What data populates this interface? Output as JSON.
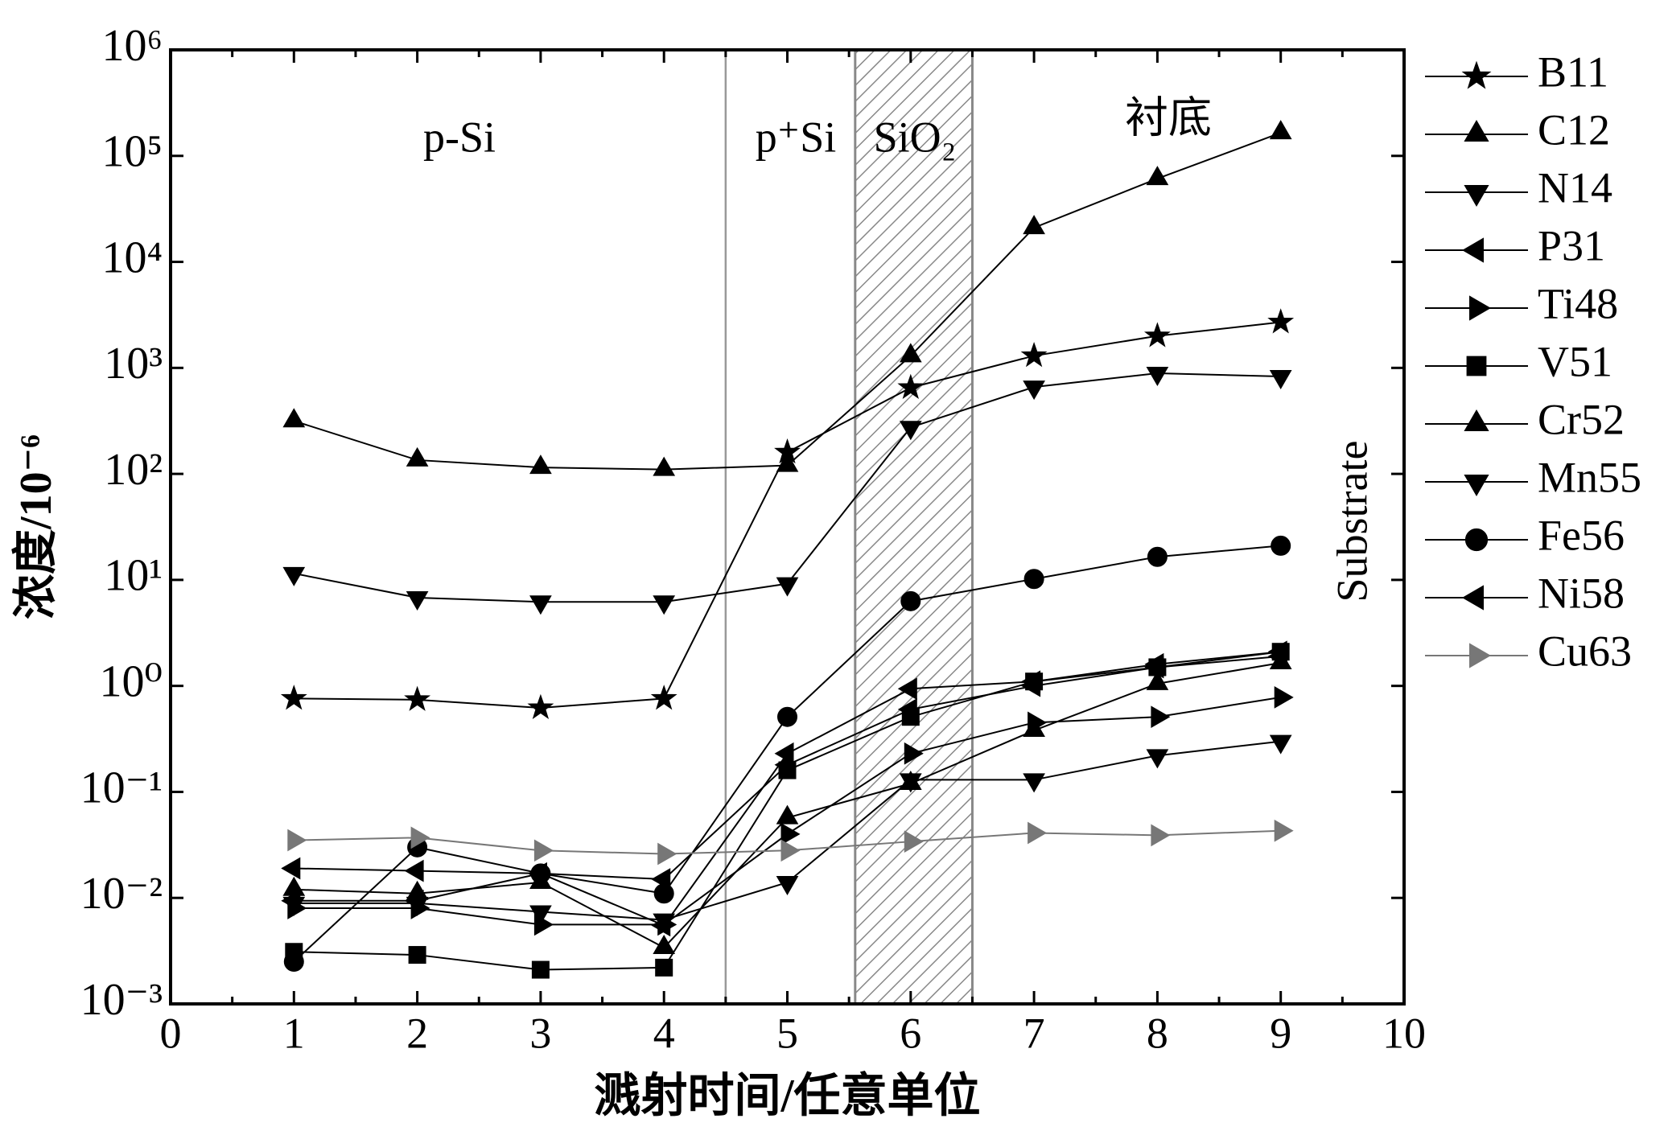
{
  "chart_data": {
    "type": "line",
    "x_label": "溅射时间/任意单位",
    "y_label": "浓度/10⁻⁶",
    "log_y": true,
    "xlim": [
      0,
      10
    ],
    "xticks": [
      0,
      1,
      2,
      3,
      4,
      5,
      6,
      7,
      8,
      9,
      10
    ],
    "ylim": [
      0.001,
      1000000
    ],
    "yticks": [
      {
        "value": 0.001,
        "label": "10⁻³"
      },
      {
        "value": 0.01,
        "label": "10⁻²"
      },
      {
        "value": 0.1,
        "label": "10⁻¹"
      },
      {
        "value": 1,
        "label": "10⁰"
      },
      {
        "value": 10,
        "label": "10¹"
      },
      {
        "value": 100,
        "label": "10²"
      },
      {
        "value": 1000,
        "label": "10³"
      },
      {
        "value": 10000,
        "label": "10⁴"
      },
      {
        "value": 100000,
        "label": "10⁵"
      },
      {
        "value": 1000000,
        "label": "10⁶"
      }
    ],
    "boundary": 4.5,
    "shaded_span": [
      5.55,
      6.5
    ],
    "annotations": [
      "p-Si",
      "p⁺Si",
      "SiO₂",
      "衬底",
      "Substrate"
    ],
    "legend": "right outside",
    "x": [
      1,
      2,
      3,
      4,
      5,
      6,
      7,
      8,
      9
    ],
    "series": [
      {
        "name": "B11",
        "marker": "star",
        "color": "#000000",
        "values": [
          0.76,
          0.74,
          0.62,
          0.76,
          160,
          650,
          1300,
          2000,
          2700
        ]
      },
      {
        "name": "C12",
        "marker": "up",
        "color": "#000000",
        "values": [
          316,
          135,
          115,
          110,
          120,
          1300,
          21000,
          61000,
          165000
        ]
      },
      {
        "name": "N14",
        "marker": "down",
        "color": "#000000",
        "values": [
          11.5,
          6.8,
          6.2,
          6.2,
          9.2,
          275,
          660,
          890,
          830
        ]
      },
      {
        "name": "P31",
        "marker": "left",
        "color": "#000000",
        "values": [
          0.0094,
          0.0094,
          0.017,
          0.0055,
          0.23,
          0.94,
          1.1,
          1.6,
          2.1
        ]
      },
      {
        "name": "Ti48",
        "marker": "right",
        "color": "#000000",
        "values": [
          0.008,
          0.008,
          0.0056,
          0.0056,
          0.04,
          0.23,
          0.45,
          0.51,
          0.78
        ]
      },
      {
        "name": "V51",
        "marker": "square",
        "color": "#000000",
        "values": [
          0.0031,
          0.0029,
          0.0021,
          0.0022,
          0.16,
          0.51,
          1.1,
          1.5,
          2.1
        ]
      },
      {
        "name": "Cr52",
        "marker": "up",
        "color": "#000000",
        "values": [
          0.012,
          0.011,
          0.014,
          0.0034,
          0.057,
          0.12,
          0.38,
          1.05,
          1.65
        ]
      },
      {
        "name": "Mn55",
        "marker": "down",
        "color": "#000000",
        "values": [
          0.0089,
          0.0089,
          0.0074,
          0.0062,
          0.014,
          0.13,
          0.13,
          0.22,
          0.3
        ]
      },
      {
        "name": "Fe56",
        "marker": "circle",
        "color": "#000000",
        "values": [
          0.0025,
          0.03,
          0.017,
          0.011,
          0.51,
          6.3,
          10.2,
          16.5,
          21
        ]
      },
      {
        "name": "Ni58",
        "marker": "left",
        "color": "#000000",
        "values": [
          0.019,
          0.018,
          0.017,
          0.015,
          0.18,
          0.6,
          1.0,
          1.5,
          1.9
        ]
      },
      {
        "name": "Cu63",
        "marker": "right",
        "color": "#777777",
        "values": [
          0.035,
          0.037,
          0.028,
          0.026,
          0.028,
          0.034,
          0.041,
          0.039,
          0.043
        ]
      }
    ]
  }
}
